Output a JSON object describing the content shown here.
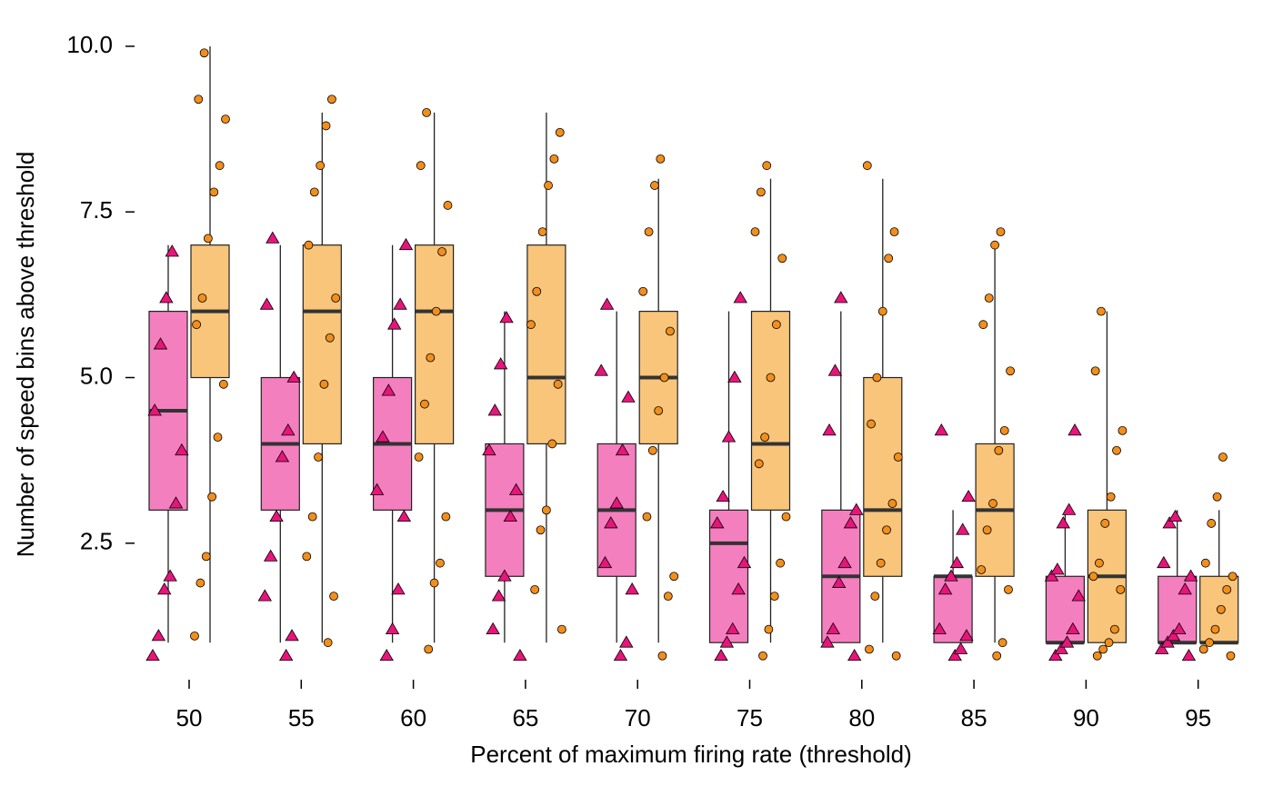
{
  "chart_data": {
    "type": "box",
    "xlabel": "Percent of maximum firing rate (threshold)",
    "ylabel": "Number of speed bins above threshold",
    "categories": [
      "50",
      "55",
      "60",
      "65",
      "70",
      "75",
      "80",
      "85",
      "90",
      "95"
    ],
    "ylim": [
      0.55,
      10.15
    ],
    "yticks": [
      {
        "value": 2.5,
        "label": "2.5"
      },
      {
        "value": 5,
        "label": "5.0"
      },
      {
        "value": 7.5,
        "label": "7.5"
      },
      {
        "value": 10,
        "label": "10.0"
      }
    ],
    "series": [
      {
        "marker": "triangle",
        "color": "#e7157b",
        "box_color": "#f47fbf",
        "boxes": [
          {
            "whislo": 1,
            "q1": 3,
            "med": 4.5,
            "q3": 6,
            "whishi": 7
          },
          {
            "whislo": 1,
            "q1": 3,
            "med": 4,
            "q3": 5,
            "whishi": 7
          },
          {
            "whislo": 1,
            "q1": 3,
            "med": 4,
            "q3": 5,
            "whishi": 7
          },
          {
            "whislo": 1,
            "q1": 2,
            "med": 3,
            "q3": 4,
            "whishi": 6
          },
          {
            "whislo": 1,
            "q1": 2,
            "med": 3,
            "q3": 4,
            "whishi": 6
          },
          {
            "whislo": 1,
            "q1": 1,
            "med": 2.5,
            "q3": 3,
            "whishi": 6
          },
          {
            "whislo": 1,
            "q1": 1,
            "med": 2,
            "q3": 3,
            "whishi": 6
          },
          {
            "whislo": 1,
            "q1": 1,
            "med": 2,
            "q3": 2,
            "whishi": 3
          },
          {
            "whislo": 1,
            "q1": 1,
            "med": 1,
            "q3": 2,
            "whishi": 3
          },
          {
            "whislo": 1,
            "q1": 1,
            "med": 1,
            "q3": 2,
            "whishi": 3
          }
        ],
        "points": [
          [
            0.8,
            1.1,
            1.8,
            2.0,
            3.1,
            3.9,
            4.5,
            5.5,
            6.2,
            6.9
          ],
          [
            0.8,
            1.1,
            1.7,
            2.3,
            2.9,
            3.8,
            4.2,
            5.0,
            6.1,
            7.1
          ],
          [
            0.8,
            1.2,
            1.8,
            2.9,
            3.3,
            4.1,
            4.8,
            5.8,
            6.1,
            7.0
          ],
          [
            0.8,
            1.2,
            1.7,
            2.0,
            2.9,
            3.3,
            3.9,
            4.5,
            5.2,
            5.9
          ],
          [
            0.8,
            1.0,
            1.8,
            2.2,
            2.8,
            3.1,
            3.9,
            4.7,
            5.1,
            6.1
          ],
          [
            0.8,
            1.0,
            1.2,
            1.8,
            2.2,
            2.8,
            3.2,
            4.1,
            5.0,
            6.2
          ],
          [
            0.8,
            1.0,
            1.2,
            1.9,
            2.2,
            2.8,
            3.0,
            4.2,
            5.1,
            6.2
          ],
          [
            0.8,
            0.9,
            1.1,
            1.2,
            1.8,
            2.0,
            2.2,
            2.7,
            3.2,
            4.2
          ],
          [
            0.8,
            0.9,
            1.0,
            1.2,
            1.7,
            2.0,
            2.1,
            2.8,
            3.0,
            4.2
          ],
          [
            0.8,
            0.9,
            1.0,
            1.1,
            1.2,
            1.8,
            2.0,
            2.2,
            2.8,
            2.9
          ]
        ]
      },
      {
        "marker": "circle",
        "color": "#f28e1c",
        "box_color": "#f8c57a",
        "boxes": [
          {
            "whislo": 1,
            "q1": 5,
            "med": 6,
            "q3": 7,
            "whishi": 10
          },
          {
            "whislo": 1,
            "q1": 4,
            "med": 6,
            "q3": 7,
            "whishi": 9
          },
          {
            "whislo": 1,
            "q1": 4,
            "med": 6,
            "q3": 7,
            "whishi": 9
          },
          {
            "whislo": 1,
            "q1": 4,
            "med": 5,
            "q3": 7,
            "whishi": 9
          },
          {
            "whislo": 1,
            "q1": 4,
            "med": 5,
            "q3": 6,
            "whishi": 8
          },
          {
            "whislo": 1,
            "q1": 3,
            "med": 4,
            "q3": 6,
            "whishi": 8
          },
          {
            "whislo": 1,
            "q1": 2,
            "med": 3,
            "q3": 5,
            "whishi": 8
          },
          {
            "whislo": 1,
            "q1": 2,
            "med": 3,
            "q3": 4,
            "whishi": 7
          },
          {
            "whislo": 1,
            "q1": 1,
            "med": 2,
            "q3": 3,
            "whishi": 6
          },
          {
            "whislo": 1,
            "q1": 1,
            "med": 1,
            "q3": 2,
            "whishi": 3
          }
        ],
        "points": [
          [
            1.1,
            1.9,
            2.3,
            3.2,
            4.1,
            4.9,
            5.8,
            6.2,
            7.1,
            7.8,
            8.2,
            8.9,
            9.2,
            9.9
          ],
          [
            1.0,
            1.7,
            2.3,
            2.9,
            3.8,
            4.9,
            5.6,
            6.2,
            7.0,
            7.8,
            8.2,
            8.8,
            9.2
          ],
          [
            0.9,
            1.9,
            2.2,
            2.9,
            3.8,
            4.6,
            5.3,
            6.0,
            6.9,
            7.6,
            8.2,
            9.0
          ],
          [
            1.2,
            1.8,
            2.7,
            3.0,
            4.0,
            4.9,
            5.8,
            6.3,
            7.2,
            7.9,
            8.3,
            8.7
          ],
          [
            0.8,
            1.7,
            2.0,
            2.9,
            3.9,
            4.5,
            5.0,
            5.7,
            6.3,
            7.2,
            7.9,
            8.3
          ],
          [
            0.8,
            1.2,
            1.7,
            2.2,
            2.9,
            3.7,
            4.1,
            5.0,
            5.8,
            6.8,
            7.2,
            7.8,
            8.2
          ],
          [
            0.8,
            0.9,
            1.7,
            2.2,
            2.7,
            3.1,
            3.8,
            4.3,
            5.0,
            6.0,
            6.8,
            7.2,
            8.2
          ],
          [
            0.8,
            1.0,
            1.8,
            2.1,
            2.7,
            3.1,
            3.9,
            4.2,
            5.1,
            5.8,
            6.2,
            7.0,
            7.2
          ],
          [
            0.8,
            0.9,
            1.0,
            1.2,
            1.8,
            2.0,
            2.2,
            2.8,
            3.2,
            3.9,
            4.2,
            5.1,
            6.0
          ],
          [
            0.8,
            0.9,
            1.0,
            1.2,
            1.5,
            1.8,
            2.0,
            2.2,
            2.8,
            3.2,
            3.8
          ]
        ]
      }
    ]
  }
}
